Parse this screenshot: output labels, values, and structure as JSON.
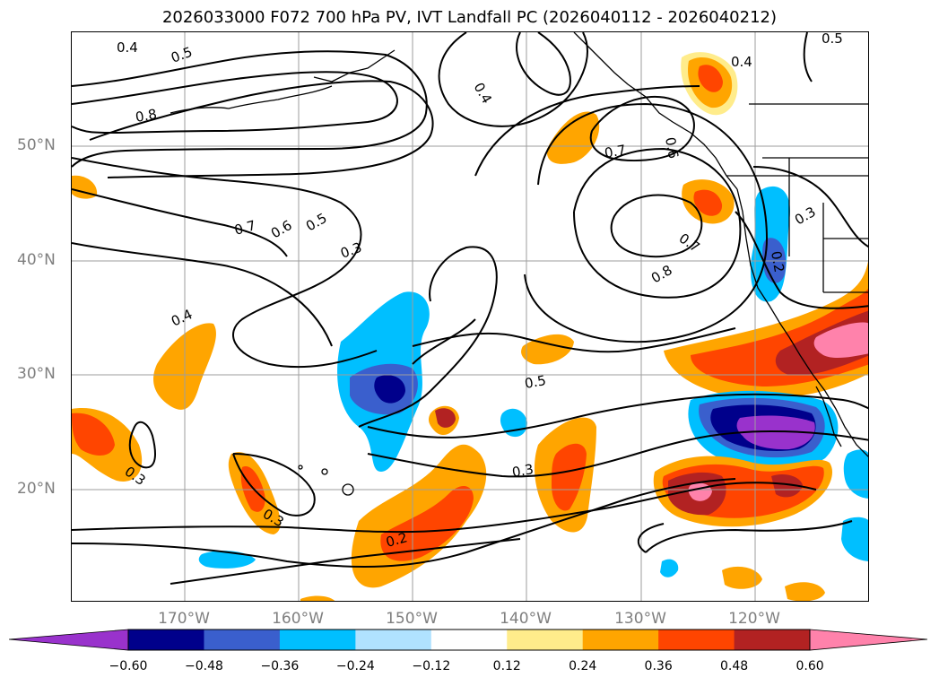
{
  "title": "2026033000 F072 700 hPa PV, IVT Landfall PC (2026040112 - 2026040212)",
  "map": {
    "lat_labels": [
      "50°N",
      "40°N",
      "30°N",
      "20°N"
    ],
    "lon_labels": [
      "170°W",
      "160°W",
      "150°W",
      "140°W",
      "130°W",
      "120°W"
    ],
    "contour_labels": [
      {
        "text": "0.4",
        "id": "c1"
      },
      {
        "text": "0.5",
        "id": "c2"
      },
      {
        "text": "0.8",
        "id": "c3"
      },
      {
        "text": "0.4",
        "id": "c4"
      },
      {
        "text": "0.5",
        "id": "c5"
      },
      {
        "text": "0.4",
        "id": "c6"
      },
      {
        "text": "0.7",
        "id": "c7"
      },
      {
        "text": "0.6",
        "id": "c8"
      },
      {
        "text": "0.7",
        "id": "c9"
      },
      {
        "text": "0.6",
        "id": "c10"
      },
      {
        "text": "0.5",
        "id": "c11"
      },
      {
        "text": "0.3",
        "id": "c12"
      },
      {
        "text": "0.7",
        "id": "c13"
      },
      {
        "text": "0.8",
        "id": "c14"
      },
      {
        "text": "0.3",
        "id": "c15"
      },
      {
        "text": "0.2",
        "id": "c16"
      },
      {
        "text": "0.4",
        "id": "c17"
      },
      {
        "text": "0.5",
        "id": "c18"
      },
      {
        "text": "0.3",
        "id": "c19"
      },
      {
        "text": "0.3",
        "id": "c20"
      },
      {
        "text": "0.3",
        "id": "c21"
      },
      {
        "text": "0.2",
        "id": "c22"
      }
    ]
  },
  "colorbar": {
    "colors": [
      "#9932cc",
      "#00008b",
      "#3a5fcd",
      "#00bfff",
      "#b0e2ff",
      "#ffffff",
      "#ffec8b",
      "#ffa500",
      "#ff4500",
      "#b22222",
      "#ff82ab"
    ],
    "ticks": [
      "−0.60",
      "−0.48",
      "−0.36",
      "−0.24",
      "−0.12",
      "0.12",
      "0.24",
      "0.36",
      "0.48",
      "0.60"
    ]
  }
}
